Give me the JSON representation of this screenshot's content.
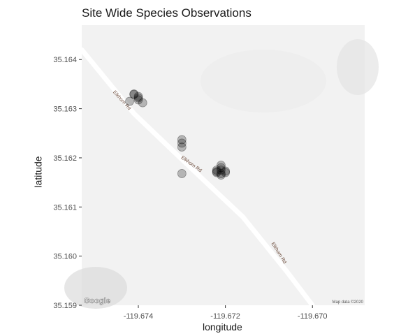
{
  "chart_data": {
    "type": "scatter",
    "title": "Site Wide Species Observations",
    "xlabel": "longitude",
    "ylabel": "latitude",
    "xlim": [
      -119.6753,
      -119.6688
    ],
    "ylim": [
      35.159,
      35.1647
    ],
    "x_ticks": [
      {
        "value": -119.674,
        "label": "-119.674"
      },
      {
        "value": -119.672,
        "label": "-119.672"
      },
      {
        "value": -119.67,
        "label": "-119.670"
      }
    ],
    "y_ticks": [
      {
        "value": 35.159,
        "label": "35.159"
      },
      {
        "value": 35.16,
        "label": "35.160"
      },
      {
        "value": 35.161,
        "label": "35.161"
      },
      {
        "value": 35.162,
        "label": "35.162"
      },
      {
        "value": 35.163,
        "label": "35.163"
      },
      {
        "value": 35.164,
        "label": "35.164"
      }
    ],
    "grid": false,
    "points": {
      "x": [
        -119.6741,
        -119.674,
        -119.6742,
        -119.674,
        -119.6739,
        -119.6741,
        -119.674,
        -119.673,
        -119.673,
        -119.673,
        -119.673,
        -119.6722,
        -119.6722,
        -119.6721,
        -119.6721,
        -119.672,
        -119.6721,
        -119.6722,
        -119.6721,
        -119.672,
        -119.6721
      ],
      "y": [
        35.1633,
        35.16325,
        35.16315,
        35.16318,
        35.16312,
        35.16329,
        35.16322,
        35.1623,
        35.16237,
        35.16222,
        35.16168,
        35.16175,
        35.1617,
        35.1618,
        35.16168,
        35.16173,
        35.16185,
        35.16172,
        35.16165,
        35.1617,
        35.16175
      ],
      "color": "#000000",
      "alpha": 0.25
    },
    "road": {
      "name_labels": [
        "Elkhorn Rd",
        "Elkhorn Rd",
        "Elkhorn Rd"
      ],
      "path": [
        [
          -119.6753,
          35.1642
        ],
        [
          -119.6741,
          35.1629
        ],
        [
          -119.6728,
          35.1618
        ],
        [
          -119.6716,
          35.1608
        ],
        [
          -119.6706,
          35.1597
        ],
        [
          -119.67,
          35.159
        ]
      ]
    },
    "map_background": "#f2f2f2",
    "attribution_logo": "Google",
    "attribution_text": "Map data ©2020"
  }
}
